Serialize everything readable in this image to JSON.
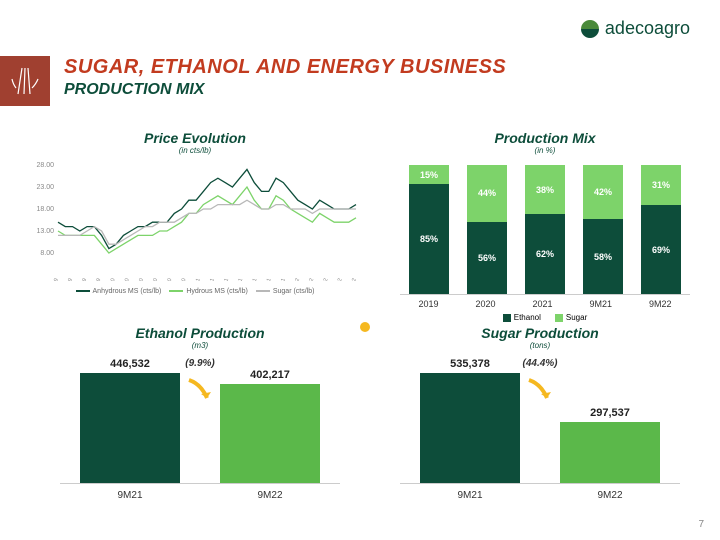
{
  "brand": {
    "name": "adecoagro"
  },
  "header": {
    "main_title": "SUGAR, ETHANOL AND ENERGY BUSINESS",
    "sub_title": "PRODUCTION MIX"
  },
  "colors": {
    "brand_red": "#c23b1f",
    "brand_dark_red": "#a04030",
    "dark_green": "#0d4d3a",
    "mid_green": "#5bb84a",
    "light_green": "#7dd36a",
    "grey": "#b8b8b8",
    "accent_dot": "#f5b820"
  },
  "price_evolution": {
    "title": "Price Evolution",
    "unit": "(in cts/lb)",
    "type": "line",
    "y_min": 8,
    "y_max": 28,
    "y_step": 5,
    "x_labels": [
      "03/07/2019",
      "30/08/2019",
      "25/10/2019",
      "20/12/2019",
      "14/02/2020",
      "09/04/2020",
      "05/06/2020",
      "31/07/2020",
      "25/09/2020",
      "20/11/2020",
      "15/01/2021",
      "11/03/2021",
      "07/05/2021",
      "01/07/2021",
      "27/08/2021",
      "22/10/2021",
      "17/12/2021",
      "11/02/2022",
      "08/04/2022",
      "03/06/2022",
      "29/07/2022",
      "23/09/2022"
    ],
    "series": [
      {
        "name": "Anhydrous MS (cts/lb)",
        "color": "#0d4d3a",
        "points": [
          15,
          14,
          14,
          13,
          14,
          14,
          12,
          9,
          10,
          12,
          13,
          14,
          14,
          15,
          15,
          15,
          17,
          18,
          20,
          20,
          22,
          24,
          25,
          24,
          23,
          25,
          27,
          24,
          22,
          22,
          25,
          24,
          22,
          20,
          19,
          18,
          20,
          19,
          18,
          18,
          18,
          19
        ]
      },
      {
        "name": "Hydrous MS (cts/lb)",
        "color": "#7dd36a",
        "points": [
          13,
          12,
          12,
          12,
          12,
          12,
          10,
          8,
          9,
          10,
          11,
          12,
          12,
          12,
          13,
          13,
          14,
          15,
          17,
          17,
          19,
          20,
          21,
          20,
          19,
          21,
          23,
          20,
          18,
          18,
          21,
          20,
          18,
          17,
          16,
          15,
          17,
          16,
          15,
          15,
          15,
          16
        ]
      },
      {
        "name": "Sugar (cts/lb)",
        "color": "#b8b8b8",
        "points": [
          12,
          12,
          12,
          12,
          13,
          14,
          13,
          10,
          10,
          11,
          12,
          13,
          14,
          14,
          15,
          15,
          15,
          16,
          17,
          17,
          18,
          18,
          19,
          19,
          19,
          19,
          20,
          19,
          18,
          18,
          19,
          19,
          18,
          18,
          18,
          17,
          18,
          18,
          18,
          18,
          18,
          18
        ]
      }
    ]
  },
  "production_mix": {
    "title": "Production Mix",
    "unit": "(in %)",
    "type": "stacked-bar",
    "categories": [
      "2019",
      "2020",
      "2021",
      "9M21",
      "9M22"
    ],
    "ethanol_color": "#0d4d3a",
    "sugar_color": "#7dd36a",
    "ethanol": [
      85,
      56,
      62,
      58,
      69
    ],
    "sugar": [
      15,
      44,
      38,
      42,
      31
    ],
    "legend": {
      "ethanol": "Ethanol",
      "sugar": "Sugar"
    }
  },
  "ethanol_production": {
    "title": "Ethanol Production",
    "unit": "(m3)",
    "type": "bar",
    "categories": [
      "9M21",
      "9M22"
    ],
    "values": [
      446532,
      402217
    ],
    "value_labels": [
      "446,532",
      "402,217"
    ],
    "colors": [
      "#0d4d3a",
      "#5bb84a"
    ],
    "delta": "(9.9%)"
  },
  "sugar_production": {
    "title": "Sugar Production",
    "unit": "(tons)",
    "type": "bar",
    "categories": [
      "9M21",
      "9M22"
    ],
    "values": [
      535378,
      297537
    ],
    "value_labels": [
      "535,378",
      "297,537"
    ],
    "colors": [
      "#0d4d3a",
      "#5bb84a"
    ],
    "delta": "(44.4%)"
  },
  "page_number": "7"
}
